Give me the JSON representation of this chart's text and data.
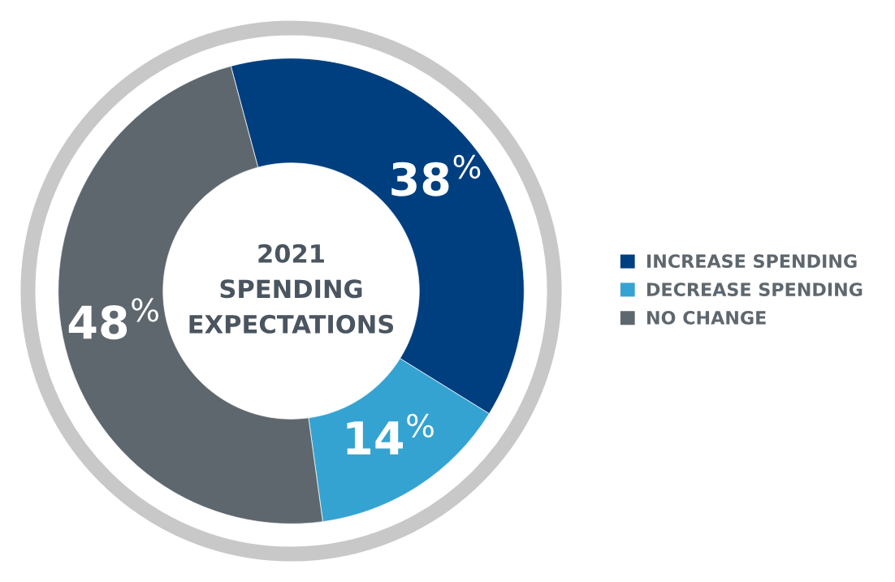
{
  "chart_data": {
    "type": "donut",
    "title": "2021\nSPENDING\nEXPECTATIONS",
    "categories": [
      "INCREASE SPENDING",
      "DECREASE SPENDING",
      "NO CHANGE"
    ],
    "values": [
      38,
      14,
      48
    ],
    "colors": [
      "#003f7f",
      "#35a3d1",
      "#5f676e"
    ],
    "value_labels": [
      "38$^{%}$",
      "14$^{%}$",
      "48$^{%}$"
    ],
    "legend": "right"
  }
}
